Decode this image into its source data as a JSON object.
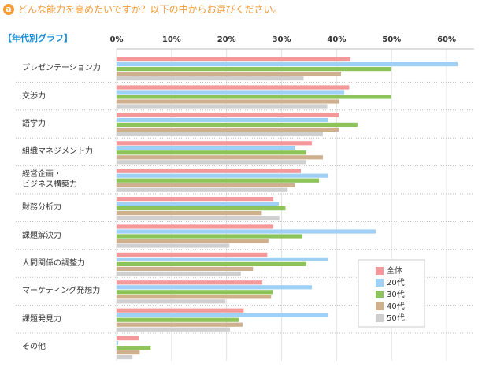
{
  "chart_data": {
    "type": "bar",
    "orientation": "horizontal",
    "title": "どんな能力を高めたいですか？以下の中からお選びください。",
    "title_badge": "a",
    "subtitle": "【年代別グラフ】",
    "categories": [
      "プレゼンテーション力",
      "交渉力",
      "語学力",
      "組織マネジメント力",
      "経営企画・\nビジネス構築力",
      "財務分析力",
      "課題解決力",
      "人間関係の調整力",
      "マーケティング発想力",
      "課題発見力",
      "その他"
    ],
    "series": [
      {
        "name": "全体",
        "color": "#f4989a",
        "values": [
          42.5,
          42.3,
          40.4,
          35.5,
          33.5,
          28.5,
          28.5,
          27.4,
          26.5,
          23.1,
          4
        ]
      },
      {
        "name": "20代",
        "color": "#9fd0f5",
        "values": [
          62,
          41.4,
          38.4,
          32.5,
          38.4,
          29.5,
          47.1,
          38.4,
          35.5,
          38.4,
          0.3
        ]
      },
      {
        "name": "30代",
        "color": "#8cc45a",
        "values": [
          49.9,
          49.9,
          43.8,
          34.5,
          36.8,
          30.7,
          33.8,
          34.5,
          28.4,
          22.2,
          6.2
        ]
      },
      {
        "name": "40代",
        "color": "#cfb08e",
        "values": [
          40.8,
          40.5,
          40.4,
          37.5,
          32.4,
          26.4,
          27.6,
          24.8,
          28.1,
          22.9,
          4.2
        ]
      },
      {
        "name": "50代",
        "color": "#cfcfcf",
        "values": [
          34,
          38.3,
          37.5,
          34.5,
          31.1,
          29.6,
          20.5,
          22.6,
          19.8,
          20.6,
          2.9
        ]
      }
    ],
    "xlim": [
      0,
      65
    ],
    "xticks": [
      {
        "value": 0,
        "label": "0%"
      },
      {
        "value": 10,
        "label": "10%"
      },
      {
        "value": 20,
        "label": "20%"
      },
      {
        "value": 30,
        "label": "30%"
      },
      {
        "value": 40,
        "label": "40%"
      },
      {
        "value": 50,
        "label": "50%"
      },
      {
        "value": 60,
        "label": "60%"
      }
    ],
    "grid": true,
    "legend": "lower right"
  }
}
